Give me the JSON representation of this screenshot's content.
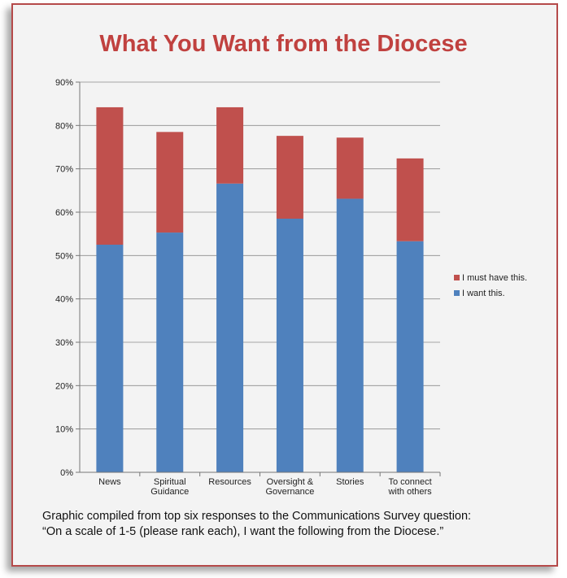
{
  "title": "What You Want from the Diocese",
  "caption": {
    "line1": "Graphic compiled from top six responses to the Communications Survey question:",
    "line2": "“On a scale of 1-5 (please rank each), I want the following from the Diocese.”"
  },
  "chart_data": {
    "type": "bar",
    "stacked": true,
    "title": "What You Want from the Diocese",
    "categories": [
      [
        "News"
      ],
      [
        "Spiritual",
        "Guidance"
      ],
      [
        "Resources"
      ],
      [
        "Oversight &",
        "Governance"
      ],
      [
        "Stories"
      ],
      [
        "To connect",
        "with others"
      ]
    ],
    "series": [
      {
        "name": "I want this.",
        "values": [
          52.5,
          55.3,
          66.6,
          58.5,
          63.1,
          53.3
        ],
        "color": "#4f81bd"
      },
      {
        "name": "I must have this.",
        "values": [
          31.7,
          23.2,
          17.6,
          19.1,
          14.1,
          19.1
        ],
        "color": "#c0504d"
      }
    ],
    "ylim": [
      0,
      90
    ],
    "yticks": [
      "0%",
      "10%",
      "20%",
      "30%",
      "40%",
      "50%",
      "60%",
      "70%",
      "80%",
      "90%"
    ],
    "grid": true,
    "legend": "right",
    "legend_order": [
      "I must have this.",
      "I want this."
    ]
  }
}
